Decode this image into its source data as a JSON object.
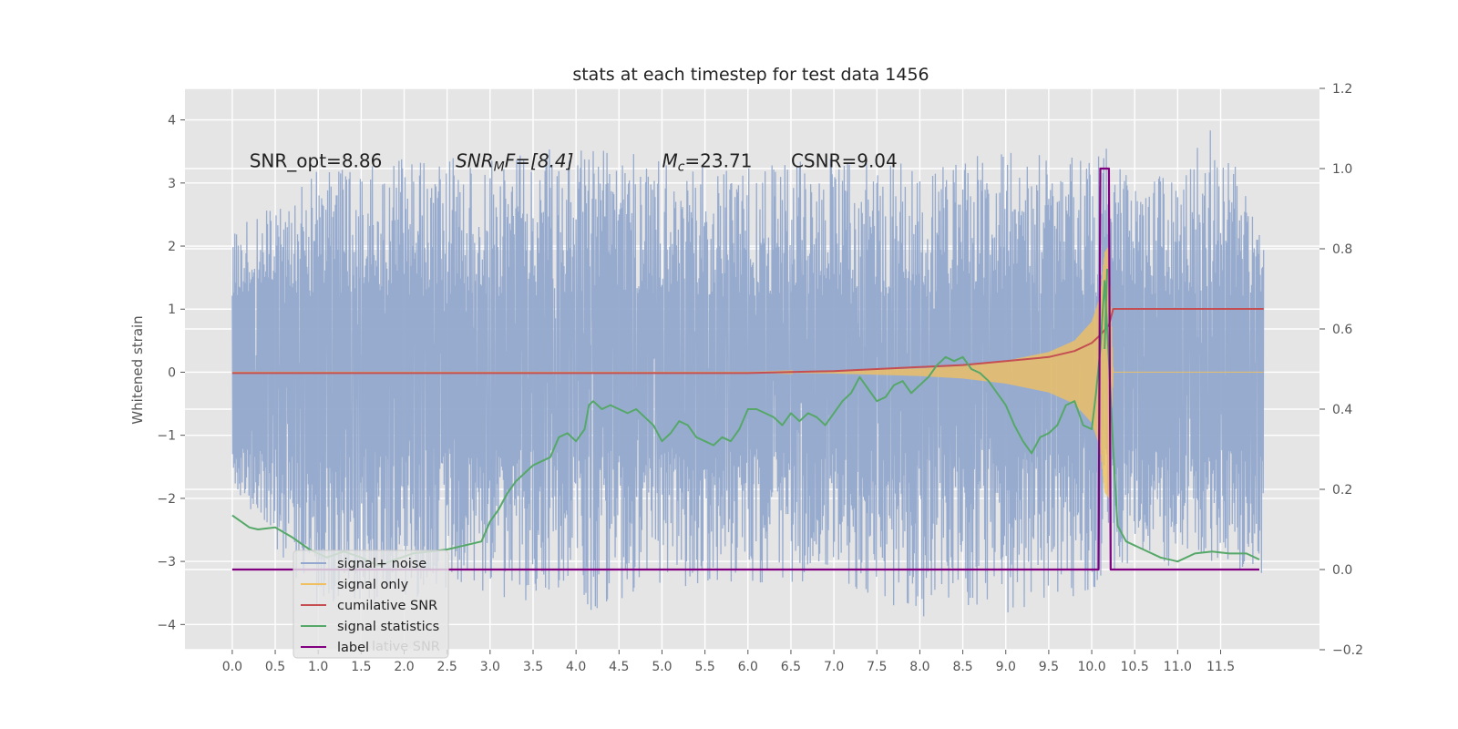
{
  "chart_data": {
    "type": "line",
    "title": "stats at each timestep for test data 1456",
    "ylabel": "Whitened strain",
    "xlim": [
      -0.55,
      12.65
    ],
    "ylim": [
      -4.4,
      4.5
    ],
    "y2lim": [
      -0.2,
      1.2
    ],
    "grid": true,
    "x_ticks": [
      0.0,
      0.5,
      1.0,
      1.5,
      2.0,
      2.5,
      3.0,
      3.5,
      4.0,
      4.5,
      5.0,
      5.5,
      6.0,
      6.5,
      7.0,
      7.5,
      8.0,
      8.5,
      9.0,
      9.5,
      10.0,
      10.5,
      11.0,
      11.5
    ],
    "x_tick_labels": [
      "0.0",
      "0.5",
      "1.0",
      "1.5",
      "2.0",
      "2.5",
      "3.0",
      "3.5",
      "4.0",
      "4.5",
      "5.0",
      "5.5",
      "6.0",
      "6.5",
      "7.0",
      "7.5",
      "8.0",
      "8.5",
      "9.0",
      "9.5",
      "10.0",
      "10.5",
      "11.0",
      "11.5"
    ],
    "y_ticks": [
      -4,
      -3,
      -2,
      -1,
      0,
      1,
      2,
      3,
      4
    ],
    "y_tick_labels": [
      "−4",
      "−3",
      "−2",
      "−1",
      "0",
      "1",
      "2",
      "3",
      "4"
    ],
    "y2_ticks": [
      -0.2,
      0.0,
      0.2,
      0.4,
      0.6,
      0.8,
      1.0,
      1.2
    ],
    "y2_tick_labels": [
      "−0.2",
      "0.0",
      "0.2",
      "0.4",
      "0.6",
      "0.8",
      "1.0",
      "1.2"
    ],
    "annotations": [
      {
        "text": "SNR_opt=8.86",
        "x": 0.2,
        "y": 3.25
      },
      {
        "text": "SNR_MF=[8.4]",
        "x": 2.6,
        "y": 3.25,
        "italic_part": "SNR",
        "sub": "M",
        "rest": "F=[8.4]"
      },
      {
        "text": "M_c=23.71",
        "x": 5.0,
        "y": 3.25,
        "italic_part": "M",
        "sub": "c",
        "rest": "=23.71"
      },
      {
        "text": "CSNR=9.04",
        "x": 6.5,
        "y": 3.25
      }
    ],
    "legend": {
      "location": "lower-left",
      "entries": [
        {
          "label": "signal+ noise",
          "color": "#92a8ce"
        },
        {
          "label": "signal only",
          "color": "#f0c060"
        },
        {
          "label": "cumilative SNR",
          "color": "#c44e52"
        },
        {
          "label": "signal statistics",
          "color": "#55a868"
        },
        {
          "label": "label",
          "color": "#800080"
        }
      ],
      "ghost_text": "lative SNR"
    },
    "series": [
      {
        "name": "signal+ noise",
        "axis": "left",
        "color": "#92a8ce",
        "x_range": [
          0.0,
          12.0
        ],
        "envelope_x": [
          0.0,
          1.0,
          2.0,
          3.0,
          4.0,
          5.0,
          6.0,
          7.0,
          8.0,
          9.0,
          10.0,
          10.15,
          10.5,
          11.0,
          11.5,
          12.0
        ],
        "upper": [
          2.3,
          3.2,
          3.4,
          3.5,
          3.6,
          3.4,
          3.3,
          3.4,
          3.3,
          3.5,
          3.4,
          3.6,
          3.0,
          3.2,
          4.1,
          2.0
        ],
        "lower": [
          -1.8,
          -3.8,
          -3.6,
          -3.5,
          -3.9,
          -3.4,
          -3.4,
          -3.3,
          -3.9,
          -3.9,
          -3.5,
          -3.2,
          -3.0,
          -3.1,
          -3.1,
          -3.2
        ]
      },
      {
        "name": "signal only",
        "axis": "left",
        "color": "#f0c060",
        "x": [
          0.0,
          6.0,
          7.0,
          8.0,
          8.5,
          9.0,
          9.5,
          9.8,
          10.0,
          10.1,
          10.15,
          10.2,
          10.25,
          12.0
        ],
        "amplitude": [
          0.0,
          0.0,
          0.02,
          0.06,
          0.1,
          0.18,
          0.32,
          0.5,
          0.8,
          1.2,
          1.9,
          2.0,
          0.0,
          0.0
        ]
      },
      {
        "name": "cumilative SNR",
        "axis": "right",
        "color": "#c44e52",
        "x": [
          0.0,
          6.0,
          7.0,
          8.0,
          8.5,
          9.0,
          9.5,
          9.8,
          10.0,
          10.1,
          10.2,
          10.25,
          12.0
        ],
        "y": [
          0.49,
          0.49,
          0.495,
          0.505,
          0.51,
          0.52,
          0.53,
          0.545,
          0.565,
          0.585,
          0.61,
          0.65,
          0.65
        ]
      },
      {
        "name": "signal statistics",
        "axis": "right",
        "color": "#55a868",
        "x": [
          0.0,
          0.1,
          0.2,
          0.3,
          0.5,
          0.7,
          0.9,
          1.1,
          1.3,
          1.5,
          1.7,
          1.9,
          2.1,
          2.3,
          2.5,
          2.7,
          2.9,
          3.0,
          3.1,
          3.2,
          3.3,
          3.4,
          3.5,
          3.6,
          3.7,
          3.8,
          3.9,
          4.0,
          4.1,
          4.15,
          4.2,
          4.3,
          4.4,
          4.5,
          4.6,
          4.7,
          4.8,
          4.9,
          5.0,
          5.1,
          5.2,
          5.3,
          5.4,
          5.5,
          5.6,
          5.7,
          5.8,
          5.9,
          6.0,
          6.1,
          6.2,
          6.3,
          6.4,
          6.5,
          6.6,
          6.7,
          6.8,
          6.9,
          7.0,
          7.1,
          7.2,
          7.3,
          7.4,
          7.5,
          7.6,
          7.7,
          7.8,
          7.9,
          8.0,
          8.1,
          8.2,
          8.3,
          8.4,
          8.5,
          8.6,
          8.7,
          8.8,
          8.9,
          9.0,
          9.1,
          9.2,
          9.3,
          9.4,
          9.5,
          9.6,
          9.7,
          9.8,
          9.9,
          10.0,
          10.05,
          10.1,
          10.15,
          10.2,
          10.25,
          10.3,
          10.4,
          10.6,
          10.8,
          11.0,
          11.2,
          11.4,
          11.6,
          11.8,
          11.95
        ],
        "y": [
          0.135,
          0.12,
          0.105,
          0.1,
          0.105,
          0.08,
          0.05,
          0.03,
          0.045,
          0.03,
          0.01,
          0.025,
          0.04,
          0.045,
          0.05,
          0.06,
          0.07,
          0.12,
          0.15,
          0.19,
          0.22,
          0.24,
          0.26,
          0.27,
          0.28,
          0.33,
          0.34,
          0.32,
          0.35,
          0.41,
          0.42,
          0.4,
          0.41,
          0.4,
          0.39,
          0.4,
          0.38,
          0.36,
          0.32,
          0.34,
          0.37,
          0.36,
          0.33,
          0.32,
          0.31,
          0.33,
          0.32,
          0.35,
          0.4,
          0.4,
          0.39,
          0.38,
          0.36,
          0.39,
          0.37,
          0.39,
          0.38,
          0.36,
          0.39,
          0.42,
          0.44,
          0.48,
          0.45,
          0.42,
          0.43,
          0.46,
          0.47,
          0.44,
          0.46,
          0.48,
          0.51,
          0.53,
          0.52,
          0.53,
          0.5,
          0.49,
          0.47,
          0.44,
          0.41,
          0.36,
          0.32,
          0.29,
          0.33,
          0.34,
          0.36,
          0.41,
          0.42,
          0.36,
          0.35,
          0.44,
          0.55,
          0.72,
          0.52,
          0.3,
          0.11,
          0.07,
          0.05,
          0.03,
          0.02,
          0.04,
          0.045,
          0.04,
          0.04,
          0.025
        ],
        "peak": {
          "x": 10.18,
          "y": 0.75
        }
      },
      {
        "name": "label",
        "axis": "right",
        "color": "#800080",
        "x": [
          0.0,
          10.08,
          10.1,
          10.2,
          10.22,
          11.95
        ],
        "y": [
          0.0,
          0.0,
          1.0,
          1.0,
          0.0,
          0.0
        ]
      }
    ]
  }
}
